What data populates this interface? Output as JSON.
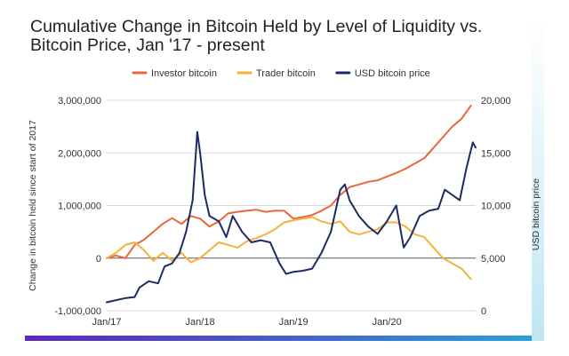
{
  "chart_data": {
    "type": "line",
    "title_lines": [
      "Cumulative Change in Bitcoin Held by Level of Liquidity vs.",
      "Bitcoin Price, Jan '17 - present"
    ],
    "ylabel": "Change in bitcoin held since start of 2017",
    "y2label": "USD bitcoin price",
    "ylim": [
      -1000000,
      3000000
    ],
    "y2lim": [
      0,
      20000
    ],
    "y_ticks": [
      "3,000,000",
      "2,000,000",
      "1,000,000",
      "0",
      "-1,000,000"
    ],
    "y_tick_values": [
      3000000,
      2000000,
      1000000,
      0,
      -1000000
    ],
    "y2_ticks": [
      "20,000",
      "15,000",
      "10,000",
      "5,000",
      "0"
    ],
    "y2_tick_values": [
      20000,
      15000,
      10000,
      5000,
      0
    ],
    "x_ticks": [
      "Jan/17",
      "Jan/18",
      "Jan/19",
      "Jan/20"
    ],
    "x_tick_values": [
      2017.0,
      2018.0,
      2019.0,
      2020.0
    ],
    "xlim": [
      2017.0,
      2020.95
    ],
    "legend_position": "top",
    "series": [
      {
        "name": "Investor bitcoin",
        "axis": "left",
        "color": "#e8673a",
        "points": [
          [
            2017.0,
            0
          ],
          [
            2017.1,
            50000
          ],
          [
            2017.2,
            0
          ],
          [
            2017.3,
            250000
          ],
          [
            2017.4,
            350000
          ],
          [
            2017.5,
            500000
          ],
          [
            2017.6,
            650000
          ],
          [
            2017.7,
            760000
          ],
          [
            2017.8,
            650000
          ],
          [
            2017.9,
            800000
          ],
          [
            2018.0,
            750000
          ],
          [
            2018.1,
            600000
          ],
          [
            2018.2,
            700000
          ],
          [
            2018.3,
            850000
          ],
          [
            2018.4,
            880000
          ],
          [
            2018.5,
            900000
          ],
          [
            2018.6,
            920000
          ],
          [
            2018.7,
            880000
          ],
          [
            2018.8,
            900000
          ],
          [
            2018.9,
            900000
          ],
          [
            2019.0,
            750000
          ],
          [
            2019.1,
            780000
          ],
          [
            2019.2,
            820000
          ],
          [
            2019.3,
            900000
          ],
          [
            2019.4,
            1000000
          ],
          [
            2019.5,
            1200000
          ],
          [
            2019.6,
            1350000
          ],
          [
            2019.7,
            1400000
          ],
          [
            2019.8,
            1450000
          ],
          [
            2019.9,
            1480000
          ],
          [
            2020.0,
            1550000
          ],
          [
            2020.1,
            1620000
          ],
          [
            2020.2,
            1700000
          ],
          [
            2020.3,
            1800000
          ],
          [
            2020.4,
            1900000
          ],
          [
            2020.5,
            2100000
          ],
          [
            2020.6,
            2300000
          ],
          [
            2020.7,
            2500000
          ],
          [
            2020.8,
            2650000
          ],
          [
            2020.9,
            2900000
          ]
        ]
      },
      {
        "name": "Trader bitcoin",
        "axis": "left",
        "color": "#f5b23b",
        "points": [
          [
            2017.0,
            0
          ],
          [
            2017.1,
            100000
          ],
          [
            2017.2,
            250000
          ],
          [
            2017.3,
            300000
          ],
          [
            2017.4,
            150000
          ],
          [
            2017.5,
            -50000
          ],
          [
            2017.6,
            100000
          ],
          [
            2017.7,
            -50000
          ],
          [
            2017.8,
            100000
          ],
          [
            2017.9,
            -80000
          ],
          [
            2018.0,
            0
          ],
          [
            2018.1,
            150000
          ],
          [
            2018.2,
            300000
          ],
          [
            2018.3,
            250000
          ],
          [
            2018.4,
            200000
          ],
          [
            2018.5,
            320000
          ],
          [
            2018.6,
            380000
          ],
          [
            2018.7,
            450000
          ],
          [
            2018.8,
            550000
          ],
          [
            2018.9,
            680000
          ],
          [
            2019.0,
            720000
          ],
          [
            2019.1,
            750000
          ],
          [
            2019.2,
            780000
          ],
          [
            2019.3,
            700000
          ],
          [
            2019.4,
            650000
          ],
          [
            2019.5,
            700000
          ],
          [
            2019.6,
            500000
          ],
          [
            2019.7,
            450000
          ],
          [
            2019.8,
            500000
          ],
          [
            2019.9,
            550000
          ],
          [
            2020.0,
            680000
          ],
          [
            2020.1,
            680000
          ],
          [
            2020.2,
            600000
          ],
          [
            2020.3,
            450000
          ],
          [
            2020.4,
            400000
          ],
          [
            2020.5,
            200000
          ],
          [
            2020.6,
            0
          ],
          [
            2020.7,
            -100000
          ],
          [
            2020.8,
            -200000
          ],
          [
            2020.9,
            -400000
          ]
        ]
      },
      {
        "name": "USD bitcoin price",
        "axis": "right",
        "color": "#1d2b64",
        "points": [
          [
            2017.0,
            800
          ],
          [
            2017.1,
            1000
          ],
          [
            2017.2,
            1200
          ],
          [
            2017.3,
            1300
          ],
          [
            2017.35,
            2200
          ],
          [
            2017.45,
            2800
          ],
          [
            2017.55,
            2600
          ],
          [
            2017.62,
            4200
          ],
          [
            2017.7,
            4500
          ],
          [
            2017.78,
            5500
          ],
          [
            2017.85,
            7500
          ],
          [
            2017.92,
            10500
          ],
          [
            2017.97,
            17000
          ],
          [
            2018.0,
            15000
          ],
          [
            2018.05,
            11000
          ],
          [
            2018.1,
            9000
          ],
          [
            2018.2,
            8500
          ],
          [
            2018.28,
            7000
          ],
          [
            2018.35,
            9000
          ],
          [
            2018.45,
            7500
          ],
          [
            2018.55,
            6500
          ],
          [
            2018.65,
            6700
          ],
          [
            2018.75,
            6500
          ],
          [
            2018.85,
            4500
          ],
          [
            2018.92,
            3500
          ],
          [
            2019.0,
            3700
          ],
          [
            2019.1,
            3800
          ],
          [
            2019.2,
            4000
          ],
          [
            2019.3,
            5500
          ],
          [
            2019.4,
            7500
          ],
          [
            2019.5,
            11500
          ],
          [
            2019.55,
            12000
          ],
          [
            2019.6,
            10500
          ],
          [
            2019.7,
            9000
          ],
          [
            2019.8,
            8000
          ],
          [
            2019.9,
            7300
          ],
          [
            2020.0,
            8500
          ],
          [
            2020.1,
            10000
          ],
          [
            2020.18,
            6000
          ],
          [
            2020.25,
            7000
          ],
          [
            2020.35,
            9000
          ],
          [
            2020.45,
            9500
          ],
          [
            2020.55,
            9700
          ],
          [
            2020.62,
            11500
          ],
          [
            2020.7,
            11000
          ],
          [
            2020.78,
            10500
          ],
          [
            2020.85,
            13500
          ],
          [
            2020.92,
            16000
          ],
          [
            2020.95,
            15500
          ]
        ]
      }
    ]
  }
}
